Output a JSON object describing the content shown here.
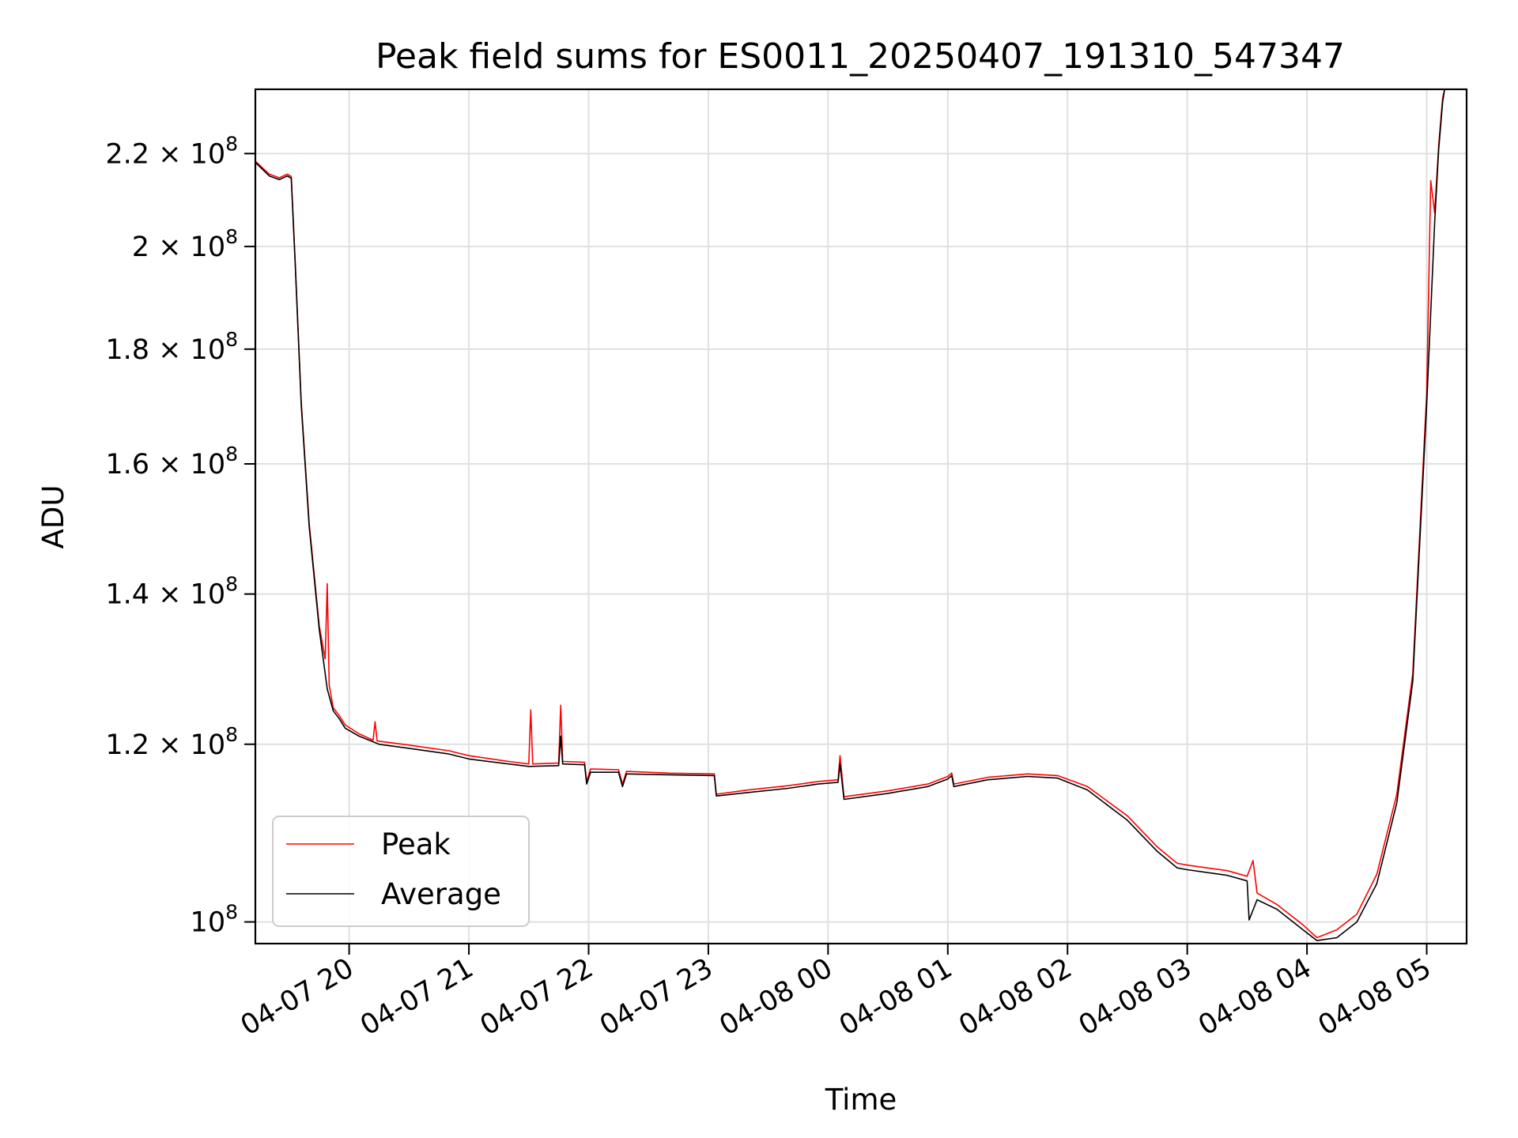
{
  "chart_data": {
    "type": "line",
    "title": "Peak field sums for ES0011_20250407_191310_547347",
    "xlabel": "Time",
    "ylabel": "ADU",
    "yscale": "log",
    "ylim": [
      97800000,
      235000000
    ],
    "xlim": [
      "2025-04-07 19:13",
      "2025-04-08 05:20"
    ],
    "grid": true,
    "legend_position": "lower-left",
    "x_ticks": [
      {
        "t": "2025-04-07 20:00",
        "label": "04-07 20"
      },
      {
        "t": "2025-04-07 21:00",
        "label": "04-07 21"
      },
      {
        "t": "2025-04-07 22:00",
        "label": "04-07 22"
      },
      {
        "t": "2025-04-07 23:00",
        "label": "04-07 23"
      },
      {
        "t": "2025-04-08 00:00",
        "label": "04-08 00"
      },
      {
        "t": "2025-04-08 01:00",
        "label": "04-08 01"
      },
      {
        "t": "2025-04-08 02:00",
        "label": "04-08 02"
      },
      {
        "t": "2025-04-08 03:00",
        "label": "04-08 03"
      },
      {
        "t": "2025-04-08 04:00",
        "label": "04-08 04"
      },
      {
        "t": "2025-04-08 05:00",
        "label": "04-08 05"
      }
    ],
    "y_ticks": [
      {
        "v": 100000000,
        "mant": "",
        "exp": "8",
        "base": "10"
      },
      {
        "v": 120000000,
        "mant": "1.2",
        "exp": "8",
        "base": "10"
      },
      {
        "v": 140000000,
        "mant": "1.4",
        "exp": "8",
        "base": "10"
      },
      {
        "v": 160000000,
        "mant": "1.6",
        "exp": "8",
        "base": "10"
      },
      {
        "v": 180000000,
        "mant": "1.8",
        "exp": "8",
        "base": "10"
      },
      {
        "v": 200000000,
        "mant": "2",
        "exp": "8",
        "base": "10"
      },
      {
        "v": 220000000,
        "mant": "2.2",
        "exp": "8",
        "base": "10"
      }
    ],
    "series": [
      {
        "name": "Average",
        "color": "#000000",
        "points": [
          [
            "2025-04-07 19:13",
            218000000
          ],
          [
            "2025-04-07 19:20",
            215000000
          ],
          [
            "2025-04-07 19:25",
            214200000
          ],
          [
            "2025-04-07 19:29",
            215000000
          ],
          [
            "2025-04-07 19:31",
            214500000
          ],
          [
            "2025-04-07 19:33",
            196000000
          ],
          [
            "2025-04-07 19:36",
            170000000
          ],
          [
            "2025-04-07 19:40",
            150000000
          ],
          [
            "2025-04-07 19:45",
            135000000
          ],
          [
            "2025-04-07 19:49",
            127000000
          ],
          [
            "2025-04-07 19:52",
            124200000
          ],
          [
            "2025-04-07 19:55",
            123200000
          ],
          [
            "2025-04-07 19:58",
            122000000
          ],
          [
            "2025-04-07 20:05",
            121000000
          ],
          [
            "2025-04-07 20:15",
            120000000
          ],
          [
            "2025-04-07 20:30",
            119500000
          ],
          [
            "2025-04-07 20:50",
            118800000
          ],
          [
            "2025-04-07 21:00",
            118200000
          ],
          [
            "2025-04-07 21:20",
            117600000
          ],
          [
            "2025-04-07 21:30",
            117300000
          ],
          [
            "2025-04-07 21:45",
            117400000
          ],
          [
            "2025-04-07 21:46",
            121000000
          ],
          [
            "2025-04-07 21:47",
            117600000
          ],
          [
            "2025-04-07 21:58",
            117500000
          ],
          [
            "2025-04-07 21:59",
            115200000
          ],
          [
            "2025-04-07 22:01",
            116600000
          ],
          [
            "2025-04-07 22:15",
            116600000
          ],
          [
            "2025-04-07 22:17",
            114900000
          ],
          [
            "2025-04-07 22:19",
            116400000
          ],
          [
            "2025-04-07 22:40",
            116300000
          ],
          [
            "2025-04-07 23:03",
            116200000
          ],
          [
            "2025-04-07 23:04",
            113800000
          ],
          [
            "2025-04-07 23:20",
            114200000
          ],
          [
            "2025-04-07 23:40",
            114700000
          ],
          [
            "2025-04-07 23:55",
            115200000
          ],
          [
            "2025-04-08 00:05",
            115400000
          ],
          [
            "2025-04-08 00:06",
            117600000
          ],
          [
            "2025-04-08 00:08",
            113400000
          ],
          [
            "2025-04-08 00:30",
            114100000
          ],
          [
            "2025-04-08 00:50",
            114900000
          ],
          [
            "2025-04-08 01:00",
            115800000
          ],
          [
            "2025-04-08 01:02",
            116200000
          ],
          [
            "2025-04-08 01:03",
            114900000
          ],
          [
            "2025-04-08 01:20",
            115700000
          ],
          [
            "2025-04-08 01:40",
            116100000
          ],
          [
            "2025-04-08 01:55",
            115900000
          ],
          [
            "2025-04-08 02:10",
            114500000
          ],
          [
            "2025-04-08 02:30",
            111000000
          ],
          [
            "2025-04-08 02:45",
            107500000
          ],
          [
            "2025-04-08 02:55",
            105700000
          ],
          [
            "2025-04-08 03:00",
            105500000
          ],
          [
            "2025-04-08 03:20",
            104900000
          ],
          [
            "2025-04-08 03:30",
            104300000
          ],
          [
            "2025-04-08 03:31",
            100200000
          ],
          [
            "2025-04-08 03:35",
            102300000
          ],
          [
            "2025-04-08 03:45",
            101300000
          ],
          [
            "2025-04-08 03:58",
            99200000
          ],
          [
            "2025-04-08 04:05",
            98100000
          ],
          [
            "2025-04-08 04:15",
            98400000
          ],
          [
            "2025-04-08 04:25",
            100000000
          ],
          [
            "2025-04-08 04:35",
            104000000
          ],
          [
            "2025-04-08 04:45",
            113000000
          ],
          [
            "2025-04-08 04:53",
            128000000
          ],
          [
            "2025-04-08 05:00",
            170000000
          ],
          [
            "2025-04-08 05:04",
            205000000
          ],
          [
            "2025-04-08 05:06",
            221000000
          ],
          [
            "2025-04-08 05:08",
            232000000
          ],
          [
            "2025-04-08 05:09",
            235000000
          ]
        ]
      },
      {
        "name": "Peak",
        "color": "#ff0000",
        "points": [
          [
            "2025-04-07 19:13",
            218300000
          ],
          [
            "2025-04-07 19:20",
            215400000
          ],
          [
            "2025-04-07 19:25",
            214600000
          ],
          [
            "2025-04-07 19:29",
            215400000
          ],
          [
            "2025-04-07 19:31",
            214900000
          ],
          [
            "2025-04-07 19:33",
            196500000
          ],
          [
            "2025-04-07 19:36",
            170500000
          ],
          [
            "2025-04-07 19:40",
            150500000
          ],
          [
            "2025-04-07 19:45",
            135500000
          ],
          [
            "2025-04-07 19:48",
            131000000
          ],
          [
            "2025-04-07 19:49",
            141500000
          ],
          [
            "2025-04-07 19:50",
            127500000
          ],
          [
            "2025-04-07 19:52",
            124600000
          ],
          [
            "2025-04-07 19:55",
            123600000
          ],
          [
            "2025-04-07 19:58",
            122400000
          ],
          [
            "2025-04-07 20:05",
            121300000
          ],
          [
            "2025-04-07 20:12",
            120500000
          ],
          [
            "2025-04-07 20:13",
            122800000
          ],
          [
            "2025-04-07 20:14",
            120400000
          ],
          [
            "2025-04-07 20:30",
            119900000
          ],
          [
            "2025-04-07 20:50",
            119200000
          ],
          [
            "2025-04-07 21:00",
            118600000
          ],
          [
            "2025-04-07 21:20",
            117900000
          ],
          [
            "2025-04-07 21:30",
            117600000
          ],
          [
            "2025-04-07 21:31",
            124300000
          ],
          [
            "2025-04-07 21:32",
            117600000
          ],
          [
            "2025-04-07 21:45",
            117700000
          ],
          [
            "2025-04-07 21:46",
            124900000
          ],
          [
            "2025-04-07 21:47",
            117900000
          ],
          [
            "2025-04-07 21:58",
            117800000
          ],
          [
            "2025-04-07 21:59",
            115500000
          ],
          [
            "2025-04-07 22:01",
            117000000
          ],
          [
            "2025-04-07 22:15",
            116900000
          ],
          [
            "2025-04-07 22:17",
            115200000
          ],
          [
            "2025-04-07 22:19",
            116700000
          ],
          [
            "2025-04-07 22:40",
            116500000
          ],
          [
            "2025-04-07 23:03",
            116400000
          ],
          [
            "2025-04-07 23:04",
            114000000
          ],
          [
            "2025-04-07 23:20",
            114500000
          ],
          [
            "2025-04-07 23:40",
            115000000
          ],
          [
            "2025-04-07 23:55",
            115500000
          ],
          [
            "2025-04-08 00:05",
            115700000
          ],
          [
            "2025-04-08 00:06",
            118600000
          ],
          [
            "2025-04-08 00:08",
            113700000
          ],
          [
            "2025-04-08 00:30",
            114400000
          ],
          [
            "2025-04-08 00:50",
            115200000
          ],
          [
            "2025-04-08 01:00",
            116100000
          ],
          [
            "2025-04-08 01:02",
            116500000
          ],
          [
            "2025-04-08 01:03",
            115200000
          ],
          [
            "2025-04-08 01:20",
            116000000
          ],
          [
            "2025-04-08 01:40",
            116400000
          ],
          [
            "2025-04-08 01:55",
            116200000
          ],
          [
            "2025-04-08 02:10",
            114900000
          ],
          [
            "2025-04-08 02:30",
            111500000
          ],
          [
            "2025-04-08 02:45",
            108000000
          ],
          [
            "2025-04-08 02:55",
            106200000
          ],
          [
            "2025-04-08 03:00",
            106000000
          ],
          [
            "2025-04-08 03:20",
            105400000
          ],
          [
            "2025-04-08 03:30",
            104800000
          ],
          [
            "2025-04-08 03:33",
            106500000
          ],
          [
            "2025-04-08 03:35",
            103000000
          ],
          [
            "2025-04-08 03:45",
            101800000
          ],
          [
            "2025-04-08 03:58",
            99700000
          ],
          [
            "2025-04-08 04:05",
            98400000
          ],
          [
            "2025-04-08 04:15",
            99200000
          ],
          [
            "2025-04-08 04:25",
            100800000
          ],
          [
            "2025-04-08 04:35",
            105000000
          ],
          [
            "2025-04-08 04:45",
            114000000
          ],
          [
            "2025-04-08 04:53",
            129000000
          ],
          [
            "2025-04-08 05:00",
            172000000
          ],
          [
            "2025-04-08 05:02",
            214000000
          ],
          [
            "2025-04-08 05:04",
            207000000
          ],
          [
            "2025-04-08 05:06",
            222000000
          ],
          [
            "2025-04-08 05:08",
            233000000
          ],
          [
            "2025-04-08 05:09",
            235000000
          ]
        ]
      }
    ],
    "legend": [
      {
        "label": "Peak",
        "color": "#ff0000"
      },
      {
        "label": "Average",
        "color": "#000000"
      }
    ]
  }
}
